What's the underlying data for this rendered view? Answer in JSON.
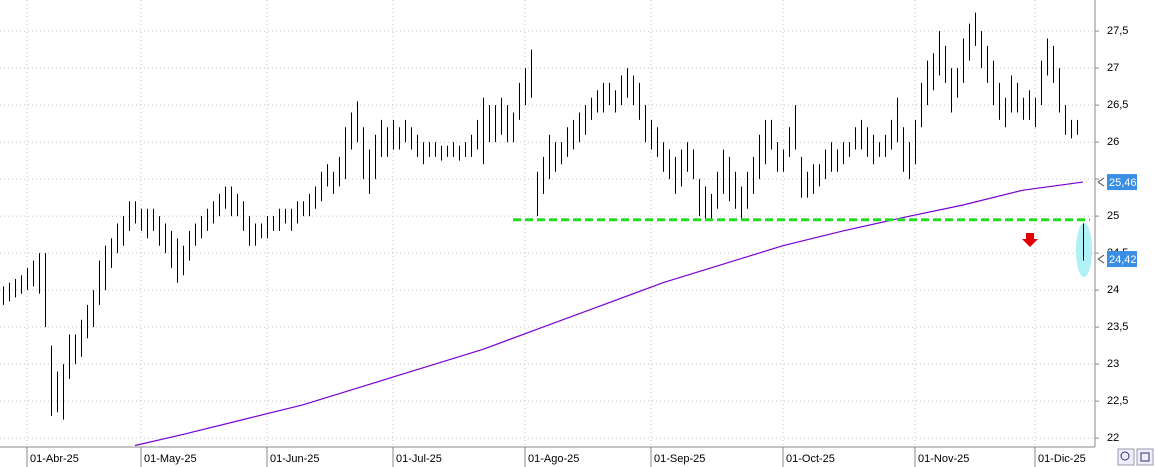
{
  "chart_data": {
    "type": "stock",
    "xlim": [
      -0.5,
      182
    ],
    "ylim": [
      21.88,
      27.92
    ],
    "xticks": [
      {
        "value": 4,
        "label": "01-Abr-25"
      },
      {
        "value": 23,
        "label": "01-May-25"
      },
      {
        "value": 44,
        "label": "01-Jun-25"
      },
      {
        "value": 65,
        "label": "01-Jul-25"
      },
      {
        "value": 87,
        "label": "01-Ago-25"
      },
      {
        "value": 108,
        "label": "01-Sep-25"
      },
      {
        "value": 130,
        "label": "01-Oct-25"
      },
      {
        "value": 152,
        "label": "01-Nov-25"
      },
      {
        "value": 172,
        "label": "01-Dic-25"
      }
    ],
    "yticks": [
      {
        "value": 22,
        "label": "22"
      },
      {
        "value": 22.5,
        "label": "22,5"
      },
      {
        "value": 23,
        "label": "23"
      },
      {
        "value": 23.5,
        "label": "23,5"
      },
      {
        "value": 24,
        "label": "24"
      },
      {
        "value": 24.5,
        "label": "24,5"
      },
      {
        "value": 25,
        "label": "25"
      },
      {
        "value": 25.5,
        "label": "25,5"
      },
      {
        "value": 26,
        "label": "26"
      },
      {
        "value": 26.5,
        "label": "26,5"
      },
      {
        "value": 27,
        "label": "27"
      },
      {
        "value": 27.5,
        "label": "27,5"
      }
    ],
    "grid": true,
    "color": "#000000",
    "high": [
      24.05,
      24.1,
      24.15,
      24.2,
      24.3,
      24.4,
      24.5,
      24.5,
      23.25,
      22.9,
      23.0,
      23.4,
      23.4,
      23.6,
      23.8,
      24.0,
      24.4,
      24.6,
      24.7,
      24.9,
      25.0,
      25.2,
      25.2,
      25.1,
      25.1,
      25.1,
      25.0,
      24.9,
      24.8,
      24.7,
      24.6,
      24.8,
      24.9,
      25.0,
      25.1,
      25.2,
      25.3,
      25.4,
      25.4,
      25.3,
      25.2,
      25.0,
      24.9,
      24.9,
      25.0,
      25.0,
      25.1,
      25.1,
      25.1,
      25.2,
      25.2,
      25.3,
      25.4,
      25.6,
      25.7,
      25.6,
      25.8,
      26.2,
      26.4,
      26.55,
      26.2,
      25.9,
      26.1,
      26.3,
      26.2,
      26.3,
      26.2,
      26.3,
      26.2,
      26.1,
      26.0,
      26.0,
      26.0,
      25.95,
      25.95,
      26.0,
      25.95,
      26.0,
      26.1,
      26.3,
      26.6,
      26.5,
      26.5,
      26.6,
      26.5,
      26.4,
      26.8,
      27.0,
      27.25,
      25.6,
      25.8,
      26.1,
      26.0,
      26.0,
      26.2,
      26.3,
      26.4,
      26.5,
      26.6,
      26.7,
      26.8,
      26.8,
      26.7,
      26.9,
      27.0,
      26.9,
      26.8,
      26.5,
      26.3,
      26.2,
      26.0,
      25.9,
      25.8,
      25.9,
      26.0,
      25.9,
      25.5,
      25.4,
      25.3,
      25.6,
      25.9,
      25.8,
      25.6,
      25.4,
      25.6,
      25.8,
      26.1,
      26.3,
      26.3,
      26.0,
      25.9,
      26.2,
      26.5,
      25.8,
      25.6,
      25.7,
      25.7,
      25.9,
      26.0,
      25.9,
      26.0,
      26.0,
      26.2,
      26.3,
      26.2,
      26.1,
      26.0,
      26.1,
      26.3,
      26.6,
      26.2,
      26.0,
      26.3,
      26.8,
      27.1,
      27.2,
      27.5,
      27.3,
      27.0,
      27.0,
      27.4,
      27.6,
      27.75,
      27.5,
      27.3,
      27.1,
      26.8,
      26.6,
      26.9,
      26.8,
      26.6,
      26.7,
      26.6,
      27.1,
      27.4,
      27.3,
      27.0,
      26.5,
      26.3,
      26.3,
      24.9
    ],
    "low": [
      23.8,
      23.85,
      23.9,
      23.95,
      24.0,
      24.05,
      23.95,
      23.5,
      22.3,
      22.35,
      22.25,
      22.8,
      23.0,
      23.1,
      23.35,
      23.5,
      23.8,
      24.0,
      24.3,
      24.5,
      24.6,
      24.8,
      24.9,
      24.8,
      24.7,
      24.8,
      24.6,
      24.5,
      24.3,
      24.1,
      24.2,
      24.4,
      24.6,
      24.7,
      24.8,
      24.9,
      25.0,
      25.1,
      25.0,
      25.0,
      24.8,
      24.6,
      24.6,
      24.7,
      24.7,
      24.8,
      24.8,
      24.9,
      24.8,
      24.9,
      25.0,
      25.0,
      25.1,
      25.2,
      25.4,
      25.3,
      25.4,
      25.5,
      25.9,
      26.0,
      25.5,
      25.3,
      25.5,
      25.8,
      25.8,
      25.9,
      25.9,
      26.0,
      25.9,
      25.8,
      25.7,
      25.8,
      25.8,
      25.75,
      25.8,
      25.8,
      25.75,
      25.8,
      25.8,
      25.9,
      25.7,
      26.0,
      26.0,
      26.1,
      26.0,
      26.0,
      26.3,
      26.5,
      26.6,
      25.0,
      25.3,
      25.5,
      25.6,
      25.7,
      25.8,
      25.9,
      26.0,
      26.1,
      26.3,
      26.4,
      26.4,
      26.5,
      26.4,
      26.5,
      26.6,
      26.5,
      26.3,
      26.0,
      25.9,
      25.8,
      25.6,
      25.5,
      25.3,
      25.4,
      25.6,
      25.5,
      25.0,
      24.95,
      24.95,
      25.1,
      25.3,
      25.2,
      25.1,
      24.95,
      25.1,
      25.3,
      25.5,
      25.7,
      25.9,
      25.6,
      25.6,
      25.8,
      25.9,
      25.25,
      25.25,
      25.3,
      25.4,
      25.5,
      25.6,
      25.6,
      25.7,
      25.8,
      25.9,
      25.9,
      25.8,
      25.7,
      25.8,
      25.8,
      25.9,
      26.0,
      25.6,
      25.5,
      25.7,
      26.2,
      26.5,
      26.7,
      26.9,
      26.8,
      26.4,
      26.6,
      26.8,
      27.1,
      27.3,
      27.0,
      26.8,
      26.5,
      26.3,
      26.2,
      26.4,
      26.4,
      26.3,
      26.3,
      26.2,
      26.5,
      26.9,
      26.8,
      26.4,
      26.1,
      26.05,
      26.1,
      24.4
    ],
    "ma": {
      "color": "#7b00d4",
      "x": [
        22,
        30,
        40,
        50,
        60,
        70,
        80,
        90,
        100,
        110,
        120,
        130,
        140,
        150,
        160,
        170,
        180
      ],
      "values": [
        21.9,
        22.05,
        22.25,
        22.45,
        22.7,
        22.95,
        23.2,
        23.5,
        23.8,
        24.1,
        24.35,
        24.6,
        24.8,
        24.98,
        25.15,
        25.35,
        25.46
      ]
    },
    "ma_label": {
      "value": 25.46,
      "label": "25,46"
    },
    "last_label": {
      "value": 24.42,
      "label": "24,42"
    },
    "support": {
      "value": 24.95,
      "start": 85,
      "color": "#22dd22"
    }
  }
}
